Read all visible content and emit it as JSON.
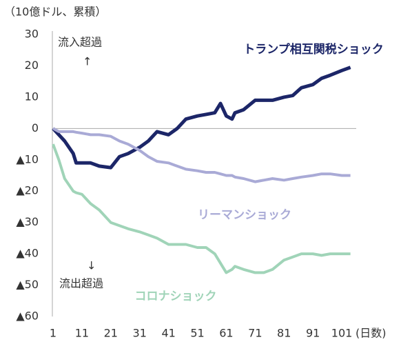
{
  "chart_data": {
    "type": "line",
    "y_label": "（10億ドル、累積）",
    "x_label": "(日数)",
    "annotations": [
      "流入超過",
      "↑",
      "↓",
      "流出超過"
    ],
    "x": [
      1,
      3,
      5,
      8,
      9,
      11,
      14,
      17,
      21,
      24,
      27,
      31,
      34,
      37,
      41,
      44,
      47,
      51,
      54,
      57,
      59,
      61,
      63,
      64,
      67,
      71,
      74,
      77,
      81,
      84,
      87,
      91,
      94,
      97,
      101,
      104
    ],
    "series": [
      {
        "name": "トランプ相互関税ショック",
        "color": "#1c2668",
        "values": [
          0,
          -2,
          -4,
          -8,
          -11,
          -11,
          -11,
          -12,
          -12.5,
          -9,
          -8,
          -6,
          -4,
          -1,
          -2,
          0,
          3,
          4,
          4.5,
          5,
          8,
          4,
          3,
          5,
          6,
          9,
          9,
          9,
          10,
          10.5,
          13,
          14,
          16,
          17,
          18.5,
          19.5
        ]
      },
      {
        "name": "リーマンショック",
        "color": "#a9aad6",
        "values": [
          0,
          -1,
          -1,
          -1,
          -1.2,
          -1.5,
          -2,
          -2,
          -2.5,
          -4,
          -5,
          -7,
          -9,
          -10.5,
          -11,
          -12,
          -13,
          -13.5,
          -14,
          -14,
          -14.5,
          -15,
          -15,
          -15.5,
          -16,
          -17,
          -16.5,
          -16,
          -16.5,
          -16,
          -15.5,
          -15,
          -14.5,
          -14.5,
          -15,
          -15
        ]
      },
      {
        "name": "コロナショック",
        "color": "#a0d4b8",
        "values": [
          -5,
          -10,
          -16,
          -20,
          -20.5,
          -21,
          -24,
          -26,
          -30,
          -31,
          -32,
          -33,
          -34,
          -35,
          -37,
          -37,
          -37,
          -38,
          -38,
          -40,
          -43,
          -46,
          -45,
          -44,
          -45,
          -46,
          -46,
          -45,
          -42,
          -41,
          -40,
          -40,
          -40.5,
          -40,
          -40,
          -40
        ]
      }
    ],
    "xlim": [
      1,
      106
    ],
    "xticks": [
      1,
      11,
      21,
      31,
      41,
      51,
      61,
      71,
      81,
      91,
      101
    ],
    "ylim": [
      -60,
      30
    ],
    "yticks": [
      {
        "value": -60,
        "label": "▲60"
      },
      {
        "value": -50,
        "label": "▲50"
      },
      {
        "value": -40,
        "label": "▲40"
      },
      {
        "value": -30,
        "label": "▲30"
      },
      {
        "value": -20,
        "label": "▲20"
      },
      {
        "value": -10,
        "label": "▲10"
      },
      0,
      10,
      20,
      30
    ],
    "grid": false
  }
}
